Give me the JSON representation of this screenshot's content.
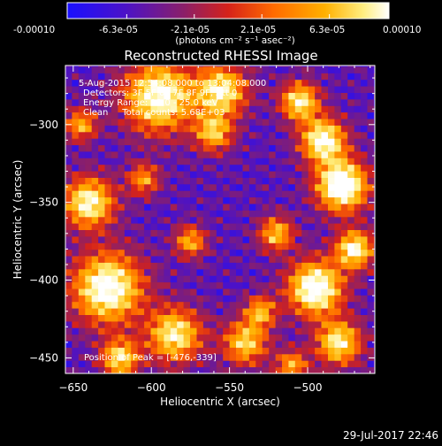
{
  "colorbar": {
    "tick_labels": [
      "-0.00010",
      "-6.3e-05",
      "-2.1e-05",
      "2.1e-05",
      "6.3e-05",
      "0.00010"
    ],
    "tick_values": [
      -0.0001,
      -6.3e-05,
      -2.1e-05,
      2.1e-05,
      6.3e-05,
      0.0001
    ],
    "range": [
      -0.0001,
      0.0001
    ],
    "units_label": "(photons cm⁻² s⁻¹ asec⁻²)",
    "colors": [
      "#1a10ff",
      "#4b12c8",
      "#8a1f6a",
      "#d5221a",
      "#ff6a00",
      "#ffb000",
      "#ffee80",
      "#ffffff"
    ]
  },
  "chart_data": {
    "type": "heatmap",
    "title": "Reconstructed RHESSI Image",
    "xlabel": "Heliocentric X (arcsec)",
    "ylabel": "Heliocentric Y (arcsec)",
    "xlim": [
      -655,
      -457
    ],
    "ylim": [
      -460,
      -262
    ],
    "x_ticks": [
      -650,
      -600,
      -550,
      -500
    ],
    "x_tick_labels": [
      "−650",
      "−600",
      "−550",
      "−500"
    ],
    "y_ticks": [
      -300,
      -350,
      -400,
      -450
    ],
    "y_tick_labels": [
      "−300",
      "−350",
      "−400",
      "−450"
    ],
    "annotations": [
      "5-Aug-2015 12:54:08.000 to 13:04:08.000",
      "Detectors: 3F 5F 6F 7F 8F 9F, Att 0",
      "Energy Range: 12.0 - 25.0 keV",
      "Clean     Total counts: 5.68E+03"
    ],
    "peak_label": "Position of Peak = [-476,-339]",
    "peak": [
      -476,
      -339
    ],
    "grid": false
  },
  "footer": {
    "timestamp": "29-Jul-2017 22:46"
  }
}
